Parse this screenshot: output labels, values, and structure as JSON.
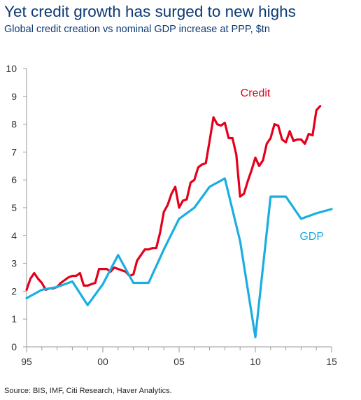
{
  "title": "Yet credit growth has surged to new highs",
  "subtitle": "Global credit creation vs nominal GDP increase at PPP, $tn",
  "source": "Source: BIS, IMF, Citi Research, Haver Analytics.",
  "chart_data": {
    "type": "line",
    "xlim": [
      1995,
      2015
    ],
    "ylim": [
      0,
      10
    ],
    "y_ticks": [
      0,
      1,
      2,
      3,
      4,
      5,
      6,
      7,
      8,
      9,
      10
    ],
    "x_ticks": [
      {
        "value": 1995,
        "label": "95"
      },
      {
        "value": 2000,
        "label": "00"
      },
      {
        "value": 2005,
        "label": "05"
      },
      {
        "value": 2010,
        "label": "10"
      },
      {
        "value": 2015,
        "label": "15"
      }
    ],
    "grid": false,
    "legend": "inline labels",
    "series": [
      {
        "name": "Credit",
        "color": "#e3001b",
        "points": [
          [
            1995,
            2.05
          ],
          [
            1995.25,
            2.45
          ],
          [
            1995.5,
            2.65
          ],
          [
            1995.75,
            2.45
          ],
          [
            1996,
            2.3
          ],
          [
            1996.25,
            2.05
          ],
          [
            1996.5,
            2.1
          ],
          [
            1996.75,
            2.1
          ],
          [
            1997,
            2.15
          ],
          [
            1997.25,
            2.3
          ],
          [
            1997.5,
            2.4
          ],
          [
            1997.75,
            2.5
          ],
          [
            1998,
            2.55
          ],
          [
            1998.25,
            2.55
          ],
          [
            1998.5,
            2.65
          ],
          [
            1998.75,
            2.2
          ],
          [
            1999,
            2.2
          ],
          [
            1999.25,
            2.25
          ],
          [
            1999.5,
            2.3
          ],
          [
            1999.75,
            2.8
          ],
          [
            2000,
            2.8
          ],
          [
            2000.25,
            2.8
          ],
          [
            2000.5,
            2.7
          ],
          [
            2000.75,
            2.85
          ],
          [
            2001,
            2.8
          ],
          [
            2001.25,
            2.75
          ],
          [
            2001.5,
            2.7
          ],
          [
            2001.75,
            2.55
          ],
          [
            2002,
            2.6
          ],
          [
            2002.25,
            3.1
          ],
          [
            2002.5,
            3.3
          ],
          [
            2002.75,
            3.5
          ],
          [
            2003,
            3.5
          ],
          [
            2003.25,
            3.55
          ],
          [
            2003.5,
            3.55
          ],
          [
            2003.75,
            4.1
          ],
          [
            2004,
            4.85
          ],
          [
            2004.25,
            5.1
          ],
          [
            2004.5,
            5.5
          ],
          [
            2004.75,
            5.75
          ],
          [
            2005,
            5.0
          ],
          [
            2005.25,
            5.25
          ],
          [
            2005.5,
            5.3
          ],
          [
            2005.75,
            5.9
          ],
          [
            2006,
            6.0
          ],
          [
            2006.25,
            6.45
          ],
          [
            2006.5,
            6.55
          ],
          [
            2006.75,
            6.6
          ],
          [
            2007,
            7.4
          ],
          [
            2007.25,
            8.25
          ],
          [
            2007.5,
            8.0
          ],
          [
            2007.75,
            7.95
          ],
          [
            2008,
            8.05
          ],
          [
            2008.25,
            7.5
          ],
          [
            2008.5,
            7.5
          ],
          [
            2008.75,
            6.9
          ],
          [
            2009,
            5.4
          ],
          [
            2009.25,
            5.5
          ],
          [
            2009.5,
            5.95
          ],
          [
            2009.75,
            6.35
          ],
          [
            2010,
            6.8
          ],
          [
            2010.25,
            6.5
          ],
          [
            2010.5,
            6.7
          ],
          [
            2010.75,
            7.3
          ],
          [
            2011,
            7.5
          ],
          [
            2011.25,
            8.0
          ],
          [
            2011.5,
            7.95
          ],
          [
            2011.75,
            7.45
          ],
          [
            2012,
            7.35
          ],
          [
            2012.25,
            7.75
          ],
          [
            2012.5,
            7.4
          ],
          [
            2012.75,
            7.45
          ],
          [
            2013,
            7.45
          ],
          [
            2013.25,
            7.3
          ],
          [
            2013.5,
            7.65
          ],
          [
            2013.75,
            7.6
          ],
          [
            2014,
            8.5
          ],
          [
            2014.25,
            8.65
          ]
        ]
      },
      {
        "name": "GDP",
        "color": "#1aaee0",
        "points": [
          [
            1995,
            1.75
          ],
          [
            1996,
            2.05
          ],
          [
            1997,
            2.15
          ],
          [
            1998,
            2.35
          ],
          [
            1999,
            1.5
          ],
          [
            2000,
            2.25
          ],
          [
            2001,
            3.3
          ],
          [
            2002,
            2.3
          ],
          [
            2003,
            2.3
          ],
          [
            2004,
            3.5
          ],
          [
            2005,
            4.6
          ],
          [
            2006,
            5.0
          ],
          [
            2007,
            5.75
          ],
          [
            2008,
            6.05
          ],
          [
            2009,
            3.8
          ],
          [
            2010,
            0.35
          ],
          [
            2011,
            5.4
          ],
          [
            2012,
            5.4
          ],
          [
            2013,
            4.6
          ],
          [
            2014,
            4.8
          ],
          [
            2015,
            4.95
          ]
        ]
      }
    ]
  }
}
